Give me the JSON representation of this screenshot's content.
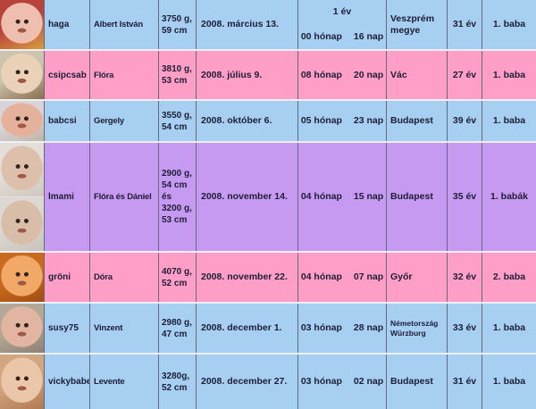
{
  "palette": {
    "blue": "#A6CFF2",
    "pink": "#FF9FC7",
    "purple": "#C79AF2",
    "text": "#1D1D35",
    "grid_line": "#68687D",
    "row_divider": "#EEF0F7"
  },
  "table": {
    "rows": [
      {
        "username": "haga",
        "name": "Albert István",
        "stats_lines": [
          "3750 g,",
          "59 cm"
        ],
        "date": "2008. március 13.",
        "age_year": "1 év",
        "age_months": "00 hónap",
        "age_days": "16 nap",
        "location_lines": [
          "Veszprém megye"
        ],
        "mother_age": "31 év",
        "baby_number": "1. baba",
        "color": "blue",
        "photos": [
          {
            "bg": "#b8433a",
            "bg2": "#d99c3f",
            "skin": "#eebfae"
          }
        ]
      },
      {
        "username": "csipcsab",
        "name": "Flóra",
        "stats_lines": [
          "3810 g,",
          "53 cm"
        ],
        "date": "2008. július 9.",
        "age_months": "08 hónap",
        "age_days": "20 nap",
        "location_lines": [
          "Vác"
        ],
        "mother_age": "27 év",
        "baby_number": "1. baba",
        "color": "pink",
        "photos": [
          {
            "bg": "#cdc3ae",
            "bg2": "#8a6f4e",
            "skin": "#ead2b9"
          }
        ]
      },
      {
        "username": "babcsi",
        "name": "Gergely",
        "stats_lines": [
          "3550 g,",
          "54 cm"
        ],
        "date": "2008. október 6.",
        "age_months": "05 hónap",
        "age_days": "23 nap",
        "location_lines": [
          "Budapest"
        ],
        "mother_age": "39 év",
        "baby_number": "1. baba",
        "color": "blue",
        "photos": [
          {
            "bg": "#d8d4da",
            "bg2": "#c2b4a4",
            "skin": "#e6b19b"
          }
        ]
      },
      {
        "username": "lmami",
        "name": "Flóra és Dániel",
        "stats_lines": [
          "2900 g,",
          "54 cm",
          "és",
          "3200 g,",
          "53 cm"
        ],
        "date": "2008. november 14.",
        "age_months": "04 hónap",
        "age_days": "15 nap",
        "location_lines": [
          "Budapest"
        ],
        "mother_age": "35 év",
        "baby_number": "1. babák",
        "color": "purple",
        "photos": [
          {
            "bg": "#e3ded8",
            "bg2": "#cfc8c0",
            "skin": "#dcc0ab"
          },
          {
            "bg": "#ded8d2",
            "bg2": "#c8c2bc",
            "skin": "#d8bda9"
          }
        ]
      },
      {
        "username": "gröni",
        "name": "Dóra",
        "stats_lines": [
          "4070 g,",
          "52 cm"
        ],
        "date": "2008. november 22.",
        "age_months": "04 hónap",
        "age_days": "07 nap",
        "location_lines": [
          "Győr"
        ],
        "mother_age": "32 év",
        "baby_number": "2. baba",
        "color": "pink",
        "photos": [
          {
            "bg": "#c96a1e",
            "bg2": "#a34d12",
            "skin": "#f2a866"
          }
        ]
      },
      {
        "username": "susy75",
        "name": "Vinzent",
        "stats_lines": [
          "2980 g,",
          "47 cm"
        ],
        "date": "2008. december 1.",
        "age_months": "03 hónap",
        "age_days": "28 nap",
        "location_lines": [
          "Németország",
          "Würzburg"
        ],
        "location_small": true,
        "mother_age": "33 év",
        "baby_number": "1. baba",
        "color": "blue",
        "photos": [
          {
            "bg": "#b3a795",
            "bg2": "#8f8274",
            "skin": "#e2b4a2"
          }
        ]
      },
      {
        "username": "vickybabe",
        "name": "Levente",
        "stats_lines": [
          "3280g,",
          "52 cm"
        ],
        "date": "2008. december 27.",
        "age_months": "03 hónap",
        "age_days": "02 nap",
        "location_lines": [
          "Budapest"
        ],
        "mother_age": "31 év",
        "baby_number": "1. baba",
        "color": "blue",
        "photos": [
          {
            "bg": "#d2a680",
            "bg2": "#b07a50",
            "skin": "#ecc6a8"
          }
        ]
      }
    ]
  }
}
